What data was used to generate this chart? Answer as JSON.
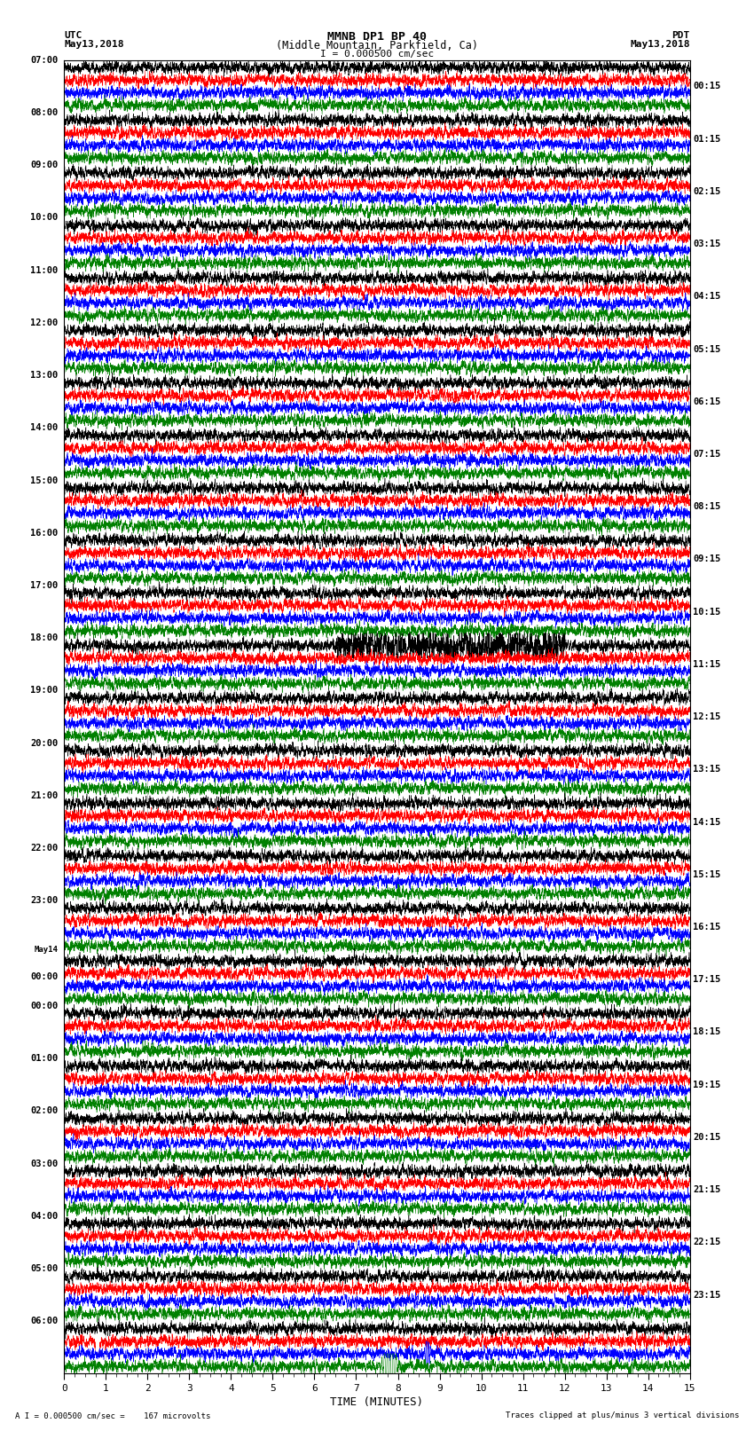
{
  "title_line1": "MMNB DP1 BP 40",
  "title_line2": "(Middle Mountain, Parkfield, Ca)",
  "scale_label": "I = 0.000500 cm/sec",
  "footer_left": "A I = 0.000500 cm/sec =    167 microvolts",
  "footer_right": "Traces clipped at plus/minus 3 vertical divisions",
  "utc_label": "UTC",
  "utc_date": "May13,2018",
  "pdt_label": "PDT",
  "pdt_date": "May13,2018",
  "xlabel": "TIME (MINUTES)",
  "left_times_utc": [
    "07:00",
    "08:00",
    "09:00",
    "10:00",
    "11:00",
    "12:00",
    "13:00",
    "14:00",
    "15:00",
    "16:00",
    "17:00",
    "18:00",
    "19:00",
    "20:00",
    "21:00",
    "22:00",
    "23:00",
    "May14\n00:00",
    "01:00",
    "02:00",
    "03:00",
    "04:00",
    "05:00",
    "06:00"
  ],
  "left_times_y_labels": [
    "07:00",
    "08:00",
    "09:00",
    "10:00",
    "11:00",
    "12:00",
    "13:00",
    "14:00",
    "15:00",
    "16:00",
    "17:00",
    "18:00",
    "19:00",
    "20:00",
    "21:00",
    "22:00",
    "23:00",
    "May14",
    "00:00",
    "01:00",
    "02:00",
    "03:00",
    "04:00",
    "05:00",
    "06:00"
  ],
  "right_times_pdt": [
    "00:15",
    "01:15",
    "02:15",
    "03:15",
    "04:15",
    "05:15",
    "06:15",
    "07:15",
    "08:15",
    "09:15",
    "10:15",
    "11:15",
    "12:15",
    "13:15",
    "14:15",
    "15:15",
    "16:15",
    "17:15",
    "18:15",
    "19:15",
    "20:15",
    "21:15",
    "22:15",
    "23:15"
  ],
  "n_rows": 25,
  "n_traces_per_row": 4,
  "trace_colors": [
    "black",
    "red",
    "blue",
    "green"
  ],
  "xmin": 0,
  "xmax": 15,
  "xticks": [
    0,
    1,
    2,
    3,
    4,
    5,
    6,
    7,
    8,
    9,
    10,
    11,
    12,
    13,
    14,
    15
  ],
  "bg_color": "white",
  "grid_color": "#888888"
}
